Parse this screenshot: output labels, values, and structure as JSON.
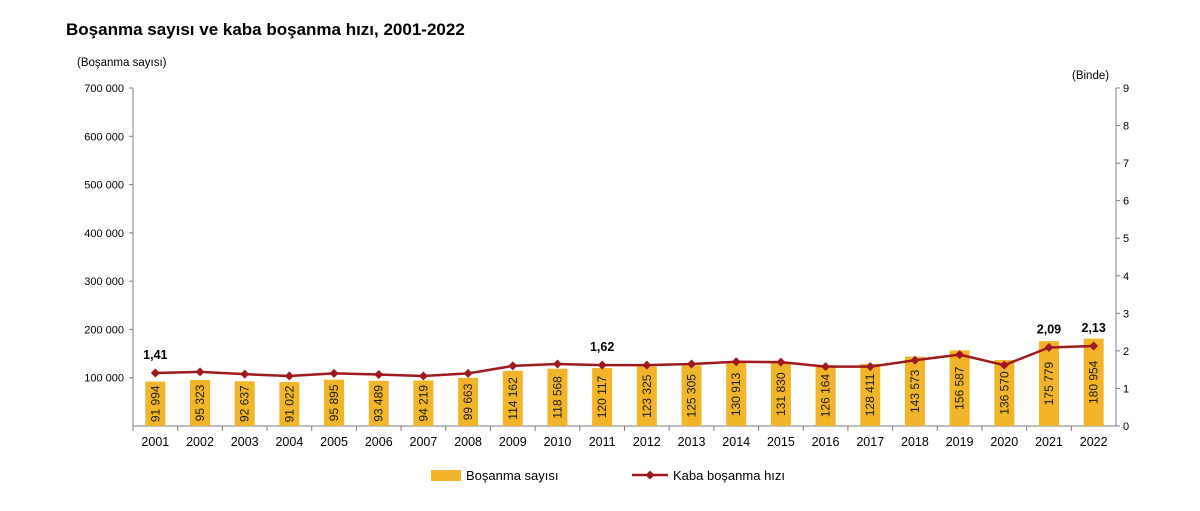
{
  "chart_data": {
    "type": "bar",
    "title": "Boşanma sayısı ve kaba boşanma hızı, 2001-2022",
    "categories": [
      "2001",
      "2002",
      "2003",
      "2004",
      "2005",
      "2006",
      "2007",
      "2008",
      "2009",
      "2010",
      "2011",
      "2012",
      "2013",
      "2014",
      "2015",
      "2016",
      "2017",
      "2018",
      "2019",
      "2020",
      "2021",
      "2022"
    ],
    "y_left_label": "(Boşanma sayısı)",
    "y_right_label": "(Binde)",
    "y_left_range": [
      0,
      700000
    ],
    "y_right_range": [
      0,
      9
    ],
    "y_left_ticks": [
      "700 000",
      "600 000",
      "500 000",
      "400 000",
      "300 000",
      "200 000",
      "100 000"
    ],
    "y_right_ticks": [
      "9",
      "8",
      "7",
      "6",
      "5",
      "4",
      "3",
      "2",
      "1",
      "0"
    ],
    "grid": false,
    "legend_position": "bottom",
    "series": [
      {
        "name": "Boşanma sayısı",
        "type": "bar",
        "axis": "left",
        "color": "#f2b52a",
        "values": [
          91994,
          95323,
          92637,
          91022,
          95895,
          93489,
          94219,
          99663,
          114162,
          118568,
          120117,
          123325,
          125305,
          130913,
          131830,
          126164,
          128411,
          143573,
          156587,
          136570,
          175779,
          180954
        ],
        "labels": [
          "91 994",
          "95 323",
          "92 637",
          "91 022",
          "95 895",
          "93 489",
          "94 219",
          "99 663",
          "114 162",
          "118 568",
          "120 117",
          "123 325",
          "125 305",
          "130 913",
          "131 830",
          "126 164",
          "128 411",
          "143 573",
          "156 587",
          "136 570",
          "175 779",
          "180 954"
        ]
      },
      {
        "name": "Kaba boşanma hızı",
        "type": "line",
        "axis": "right",
        "color": "#a0191e",
        "values": [
          1.41,
          1.44,
          1.38,
          1.33,
          1.4,
          1.37,
          1.33,
          1.4,
          1.6,
          1.65,
          1.62,
          1.62,
          1.65,
          1.71,
          1.7,
          1.58,
          1.58,
          1.75,
          1.9,
          1.62,
          2.09,
          2.13
        ]
      }
    ],
    "annotations": [
      {
        "index": 0,
        "text": "1,41"
      },
      {
        "index": 10,
        "text": "1,62"
      },
      {
        "index": 20,
        "text": "2,09"
      },
      {
        "index": 21,
        "text": "2,13"
      }
    ]
  }
}
